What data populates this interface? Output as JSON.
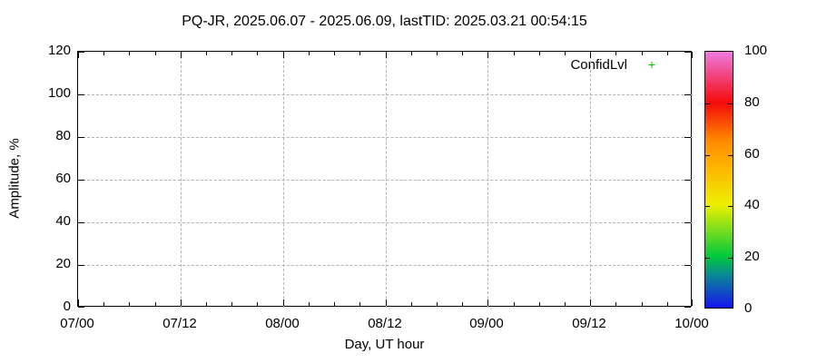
{
  "title": "PQ-JR, 2025.06.07 - 2025.06.09, lastTID: 2025.03.21 00:54:15",
  "legend": {
    "label": "ConfidLvl",
    "marker_glyph": "+",
    "marker_color": "#00cc00"
  },
  "chart_data": {
    "type": "scatter",
    "title": "PQ-JR, 2025.06.07 - 2025.06.09, lastTID: 2025.03.21 00:54:15",
    "xlabel": "Day, UT hour",
    "ylabel": "Amplitude, %",
    "x_tick_labels": [
      "07/00",
      "07/12",
      "08/00",
      "08/12",
      "09/00",
      "09/12",
      "10/00"
    ],
    "x_minor_ticks_between_major": 3,
    "y_ticks": [
      0,
      20,
      40,
      60,
      80,
      100,
      120
    ],
    "ylim": [
      0,
      120
    ],
    "grid": true,
    "legend_position": "top-right-inside",
    "series": [
      {
        "name": "ConfidLvl",
        "marker": "plus",
        "color": "#00cc00",
        "points": []
      }
    ],
    "colorbar": {
      "range": [
        0,
        100
      ],
      "ticks": [
        0,
        20,
        40,
        60,
        80,
        100
      ],
      "gradient": [
        {
          "at": 0,
          "color": "#1414ee"
        },
        {
          "at": 12,
          "color": "#0b829b"
        },
        {
          "at": 20,
          "color": "#00c83c"
        },
        {
          "at": 40,
          "color": "#ecf000"
        },
        {
          "at": 55,
          "color": "#ffb400"
        },
        {
          "at": 65,
          "color": "#ff8c00"
        },
        {
          "at": 80,
          "color": "#f50a0a"
        },
        {
          "at": 92,
          "color": "#f24b8c"
        },
        {
          "at": 100,
          "color": "#ee7ce0"
        }
      ]
    }
  },
  "colors": {
    "grid": "#b3b3b3",
    "axis": "#000000"
  }
}
